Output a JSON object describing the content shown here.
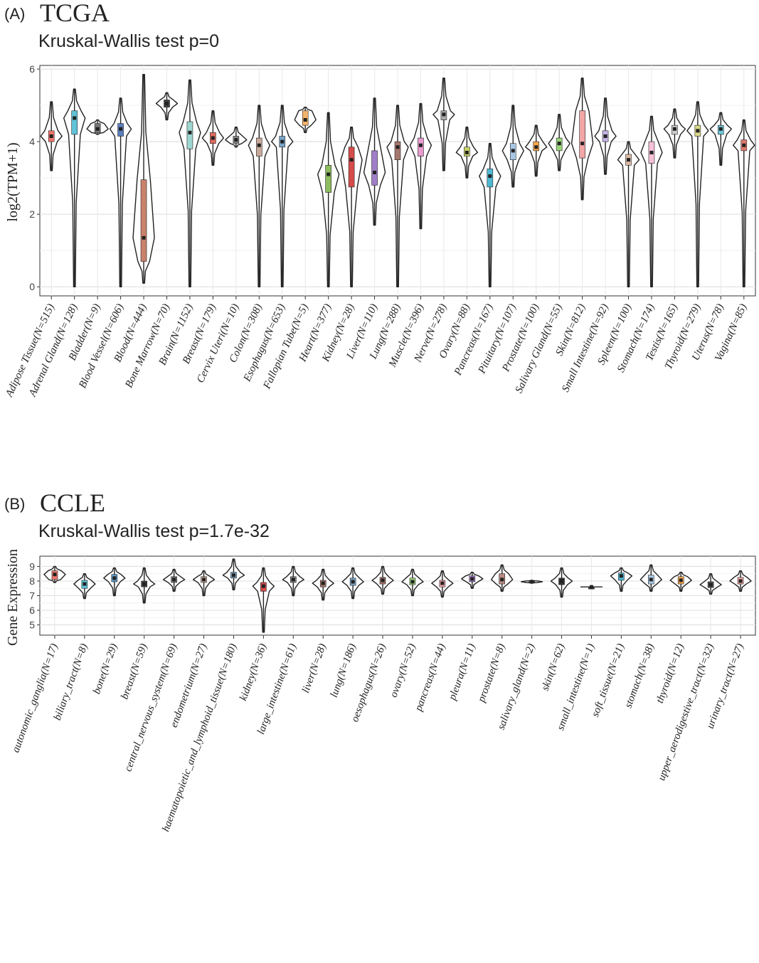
{
  "panels": [
    {
      "label": "(A)",
      "title": "TCGA",
      "subtitle": "Kruskal-Wallis test p=0",
      "chart_data": {
        "type": "violin",
        "ylabel": "log2(TPM+1)",
        "ylim": [
          -0.25,
          6.1
        ],
        "yticks": [
          0,
          2,
          4,
          6
        ],
        "grid": true,
        "categories": [
          "Adipose Tissue(N=515)",
          "Adrenal Gland(N=128)",
          "Bladder(N=9)",
          "Blood Vessel(N=606)",
          "Blood(N=444)",
          "Bone Marrow(N=70)",
          "Brain(N=1152)",
          "Breast(N=179)",
          "Cervix Uteri(N=10)",
          "Colon(N=308)",
          "Esophagus(N=653)",
          "Fallopian Tube(N=5)",
          "Heart(N=377)",
          "Kidney(N=28)",
          "Liver(N=110)",
          "Lung(N=288)",
          "Muscle(N=396)",
          "Nerve(N=278)",
          "Ovary(N=88)",
          "Pancreas(N=167)",
          "Pituitary(N=107)",
          "Prostate(N=100)",
          "Salivary Gland(N=55)",
          "Skin(N=812)",
          "Small Intestine(N=92)",
          "Spleen(N=100)",
          "Stomach(N=174)",
          "Testis(N=165)",
          "Thyroid(N=279)",
          "Uterus(N=78)",
          "Vagina(N=85)"
        ],
        "stats": [
          {
            "min": 3.2,
            "q1": 4.0,
            "median": 4.15,
            "q3": 4.3,
            "max": 5.1,
            "color": "#f0766d"
          },
          {
            "min": 0.0,
            "q1": 4.2,
            "median": 4.65,
            "q3": 4.85,
            "max": 5.45,
            "color": "#60c3d8"
          },
          {
            "min": 4.2,
            "q1": 4.25,
            "median": 4.35,
            "q3": 4.5,
            "max": 4.6,
            "color": "#777777"
          },
          {
            "min": 0.0,
            "q1": 4.15,
            "median": 4.35,
            "q3": 4.5,
            "max": 5.2,
            "color": "#5b7fbf"
          },
          {
            "min": 0.1,
            "q1": 0.7,
            "median": 1.35,
            "q3": 2.95,
            "max": 5.85,
            "color": "#c9826b"
          },
          {
            "min": 4.6,
            "q1": 4.95,
            "median": 5.05,
            "q3": 5.15,
            "max": 5.35,
            "color": "#444444"
          },
          {
            "min": 0.0,
            "q1": 3.8,
            "median": 4.25,
            "q3": 4.55,
            "max": 5.7,
            "color": "#9ed6d0"
          },
          {
            "min": 3.35,
            "q1": 3.95,
            "median": 4.1,
            "q3": 4.25,
            "max": 4.85,
            "color": "#e06b5d"
          },
          {
            "min": 3.85,
            "q1": 3.95,
            "median": 4.05,
            "q3": 4.15,
            "max": 4.4,
            "color": "#888888"
          },
          {
            "min": 0.0,
            "q1": 3.6,
            "median": 3.9,
            "q3": 4.1,
            "max": 5.0,
            "color": "#c7a89a"
          },
          {
            "min": 0.0,
            "q1": 3.85,
            "median": 4.0,
            "q3": 4.15,
            "max": 5.0,
            "color": "#7aa5c8"
          },
          {
            "min": 4.25,
            "q1": 4.45,
            "median": 4.6,
            "q3": 4.85,
            "max": 4.95,
            "color": "#f4b36b"
          },
          {
            "min": 0.0,
            "q1": 2.6,
            "median": 3.1,
            "q3": 3.35,
            "max": 4.8,
            "color": "#8dbc5e"
          },
          {
            "min": 0.0,
            "q1": 2.75,
            "median": 3.5,
            "q3": 3.85,
            "max": 4.4,
            "color": "#d64b4b"
          },
          {
            "min": 1.7,
            "q1": 2.8,
            "median": 3.15,
            "q3": 3.75,
            "max": 5.2,
            "color": "#a17fc7"
          },
          {
            "min": 0.0,
            "q1": 3.5,
            "median": 3.85,
            "q3": 4.0,
            "max": 5.0,
            "color": "#a5776c"
          },
          {
            "min": 1.6,
            "q1": 3.6,
            "median": 3.9,
            "q3": 4.1,
            "max": 5.05,
            "color": "#e99bcf"
          },
          {
            "min": 3.2,
            "q1": 4.6,
            "median": 4.75,
            "q3": 4.85,
            "max": 5.75,
            "color": "#aaaaaa"
          },
          {
            "min": 3.0,
            "q1": 3.6,
            "median": 3.7,
            "q3": 3.85,
            "max": 4.4,
            "color": "#c9d36a"
          },
          {
            "min": 0.0,
            "q1": 2.75,
            "median": 3.05,
            "q3": 3.25,
            "max": 3.95,
            "color": "#4fb9d4"
          },
          {
            "min": 2.75,
            "q1": 3.5,
            "median": 3.75,
            "q3": 3.95,
            "max": 5.0,
            "color": "#a9c7e3"
          },
          {
            "min": 3.05,
            "q1": 3.75,
            "median": 3.85,
            "q3": 4.0,
            "max": 4.45,
            "color": "#f6a74d"
          },
          {
            "min": 3.2,
            "q1": 3.75,
            "median": 3.95,
            "q3": 4.1,
            "max": 4.75,
            "color": "#9ad47c"
          },
          {
            "min": 2.4,
            "q1": 3.55,
            "median": 3.95,
            "q3": 4.85,
            "max": 5.75,
            "color": "#f2a6a6"
          },
          {
            "min": 3.1,
            "q1": 4.0,
            "median": 4.15,
            "q3": 4.3,
            "max": 5.2,
            "color": "#c4b3e3"
          },
          {
            "min": 0.0,
            "q1": 3.35,
            "median": 3.5,
            "q3": 3.65,
            "max": 4.0,
            "color": "#d9b8a6"
          },
          {
            "min": 0.0,
            "q1": 3.4,
            "median": 3.7,
            "q3": 4.0,
            "max": 4.7,
            "color": "#f5c0d7"
          },
          {
            "min": 3.55,
            "q1": 4.2,
            "median": 4.35,
            "q3": 4.45,
            "max": 4.9,
            "color": "#cccccc"
          },
          {
            "min": 0.0,
            "q1": 4.15,
            "median": 4.3,
            "q3": 4.45,
            "max": 5.1,
            "color": "#d9d98a"
          },
          {
            "min": 3.35,
            "q1": 4.2,
            "median": 4.35,
            "q3": 4.45,
            "max": 4.8,
            "color": "#6dc6d8"
          },
          {
            "min": 0.0,
            "q1": 3.75,
            "median": 3.9,
            "q3": 4.05,
            "max": 4.6,
            "color": "#e0796d"
          }
        ]
      }
    },
    {
      "label": "(B)",
      "title": "CCLE",
      "subtitle": "Kruskal-Wallis test p=1.7e-32",
      "chart_data": {
        "type": "violin",
        "ylabel": "Gene Expression",
        "ylim": [
          4.3,
          9.7
        ],
        "yticks": [
          5,
          6,
          7,
          8,
          9
        ],
        "grid": true,
        "categories": [
          "autonomic_ganglia(N=17)",
          "biliary_tract(N=8)",
          "bone(N=29)",
          "breast(N=59)",
          "central_nervous_system(N=69)",
          "endometrium(N=27)",
          "haematopoietic_and_lymphoid_tissue(N=180)",
          "kidney(N=36)",
          "large_intestine(N=61)",
          "liver(N=28)",
          "lung(N=186)",
          "oesophagus(N=26)",
          "ovary(N=52)",
          "pancreas(N=44)",
          "pleura(N=11)",
          "prostate(N=8)",
          "salivary_gland(N=2)",
          "skin(N=62)",
          "small_intestine(N=1)",
          "soft_tissue(N=21)",
          "stomach(N=38)",
          "thyroid(N=12)",
          "upper_aerodigestive_tract(N=32)",
          "urinary_tract(N=27)"
        ],
        "stats": [
          {
            "min": 7.9,
            "q1": 8.1,
            "median": 8.45,
            "q3": 8.7,
            "max": 9.0,
            "color": "#f0766d"
          },
          {
            "min": 6.8,
            "q1": 7.5,
            "median": 7.8,
            "q3": 8.05,
            "max": 8.5,
            "color": "#60c3d8"
          },
          {
            "min": 7.0,
            "q1": 7.95,
            "median": 8.2,
            "q3": 8.45,
            "max": 8.9,
            "color": "#5b9ac8"
          },
          {
            "min": 6.5,
            "q1": 7.6,
            "median": 7.8,
            "q3": 8.0,
            "max": 8.9,
            "color": "#444444"
          },
          {
            "min": 7.3,
            "q1": 7.9,
            "median": 8.1,
            "q3": 8.3,
            "max": 8.8,
            "color": "#777777"
          },
          {
            "min": 7.0,
            "q1": 7.9,
            "median": 8.1,
            "q3": 8.3,
            "max": 8.7,
            "color": "#c7a89a"
          },
          {
            "min": 7.4,
            "q1": 8.2,
            "median": 8.4,
            "q3": 8.6,
            "max": 9.5,
            "color": "#7aa5c8"
          },
          {
            "min": 4.5,
            "q1": 7.3,
            "median": 7.65,
            "q3": 7.9,
            "max": 8.9,
            "color": "#d64b4b"
          },
          {
            "min": 7.0,
            "q1": 7.9,
            "median": 8.1,
            "q3": 8.3,
            "max": 9.0,
            "color": "#888888"
          },
          {
            "min": 6.7,
            "q1": 7.6,
            "median": 7.85,
            "q3": 8.05,
            "max": 8.8,
            "color": "#a5776c"
          },
          {
            "min": 6.8,
            "q1": 7.7,
            "median": 7.95,
            "q3": 8.2,
            "max": 8.9,
            "color": "#7aa5c8"
          },
          {
            "min": 7.1,
            "q1": 7.8,
            "median": 8.05,
            "q3": 8.25,
            "max": 9.0,
            "color": "#a5776c"
          },
          {
            "min": 7.0,
            "q1": 7.75,
            "median": 7.95,
            "q3": 8.2,
            "max": 8.8,
            "color": "#9ad47c"
          },
          {
            "min": 6.9,
            "q1": 7.6,
            "median": 7.85,
            "q3": 8.05,
            "max": 8.7,
            "color": "#f2a6a6"
          },
          {
            "min": 7.5,
            "q1": 7.95,
            "median": 8.15,
            "q3": 8.35,
            "max": 8.6,
            "color": "#a17fc7"
          },
          {
            "min": 7.3,
            "q1": 7.8,
            "median": 8.1,
            "q3": 8.5,
            "max": 9.1,
            "color": "#b88a80"
          },
          {
            "min": 7.85,
            "q1": 7.9,
            "median": 7.95,
            "q3": 8.0,
            "max": 8.05,
            "color": "#444444"
          },
          {
            "min": 6.9,
            "q1": 7.75,
            "median": 8.0,
            "q3": 8.2,
            "max": 8.9,
            "color": "#333333"
          },
          {
            "min": 7.6,
            "q1": 7.6,
            "median": 7.6,
            "q3": 7.6,
            "max": 7.6,
            "color": "#444444"
          },
          {
            "min": 7.3,
            "q1": 8.05,
            "median": 8.35,
            "q3": 8.55,
            "max": 8.9,
            "color": "#4fb9d4"
          },
          {
            "min": 7.3,
            "q1": 7.8,
            "median": 8.1,
            "q3": 8.4,
            "max": 9.1,
            "color": "#a9c7e3"
          },
          {
            "min": 7.3,
            "q1": 7.8,
            "median": 8.05,
            "q3": 8.3,
            "max": 8.6,
            "color": "#f6a74d"
          },
          {
            "min": 7.1,
            "q1": 7.55,
            "median": 7.75,
            "q3": 7.95,
            "max": 8.5,
            "color": "#555555"
          },
          {
            "min": 7.3,
            "q1": 7.8,
            "median": 8.0,
            "q3": 8.25,
            "max": 8.7,
            "color": "#f2a6a6"
          }
        ]
      }
    }
  ]
}
